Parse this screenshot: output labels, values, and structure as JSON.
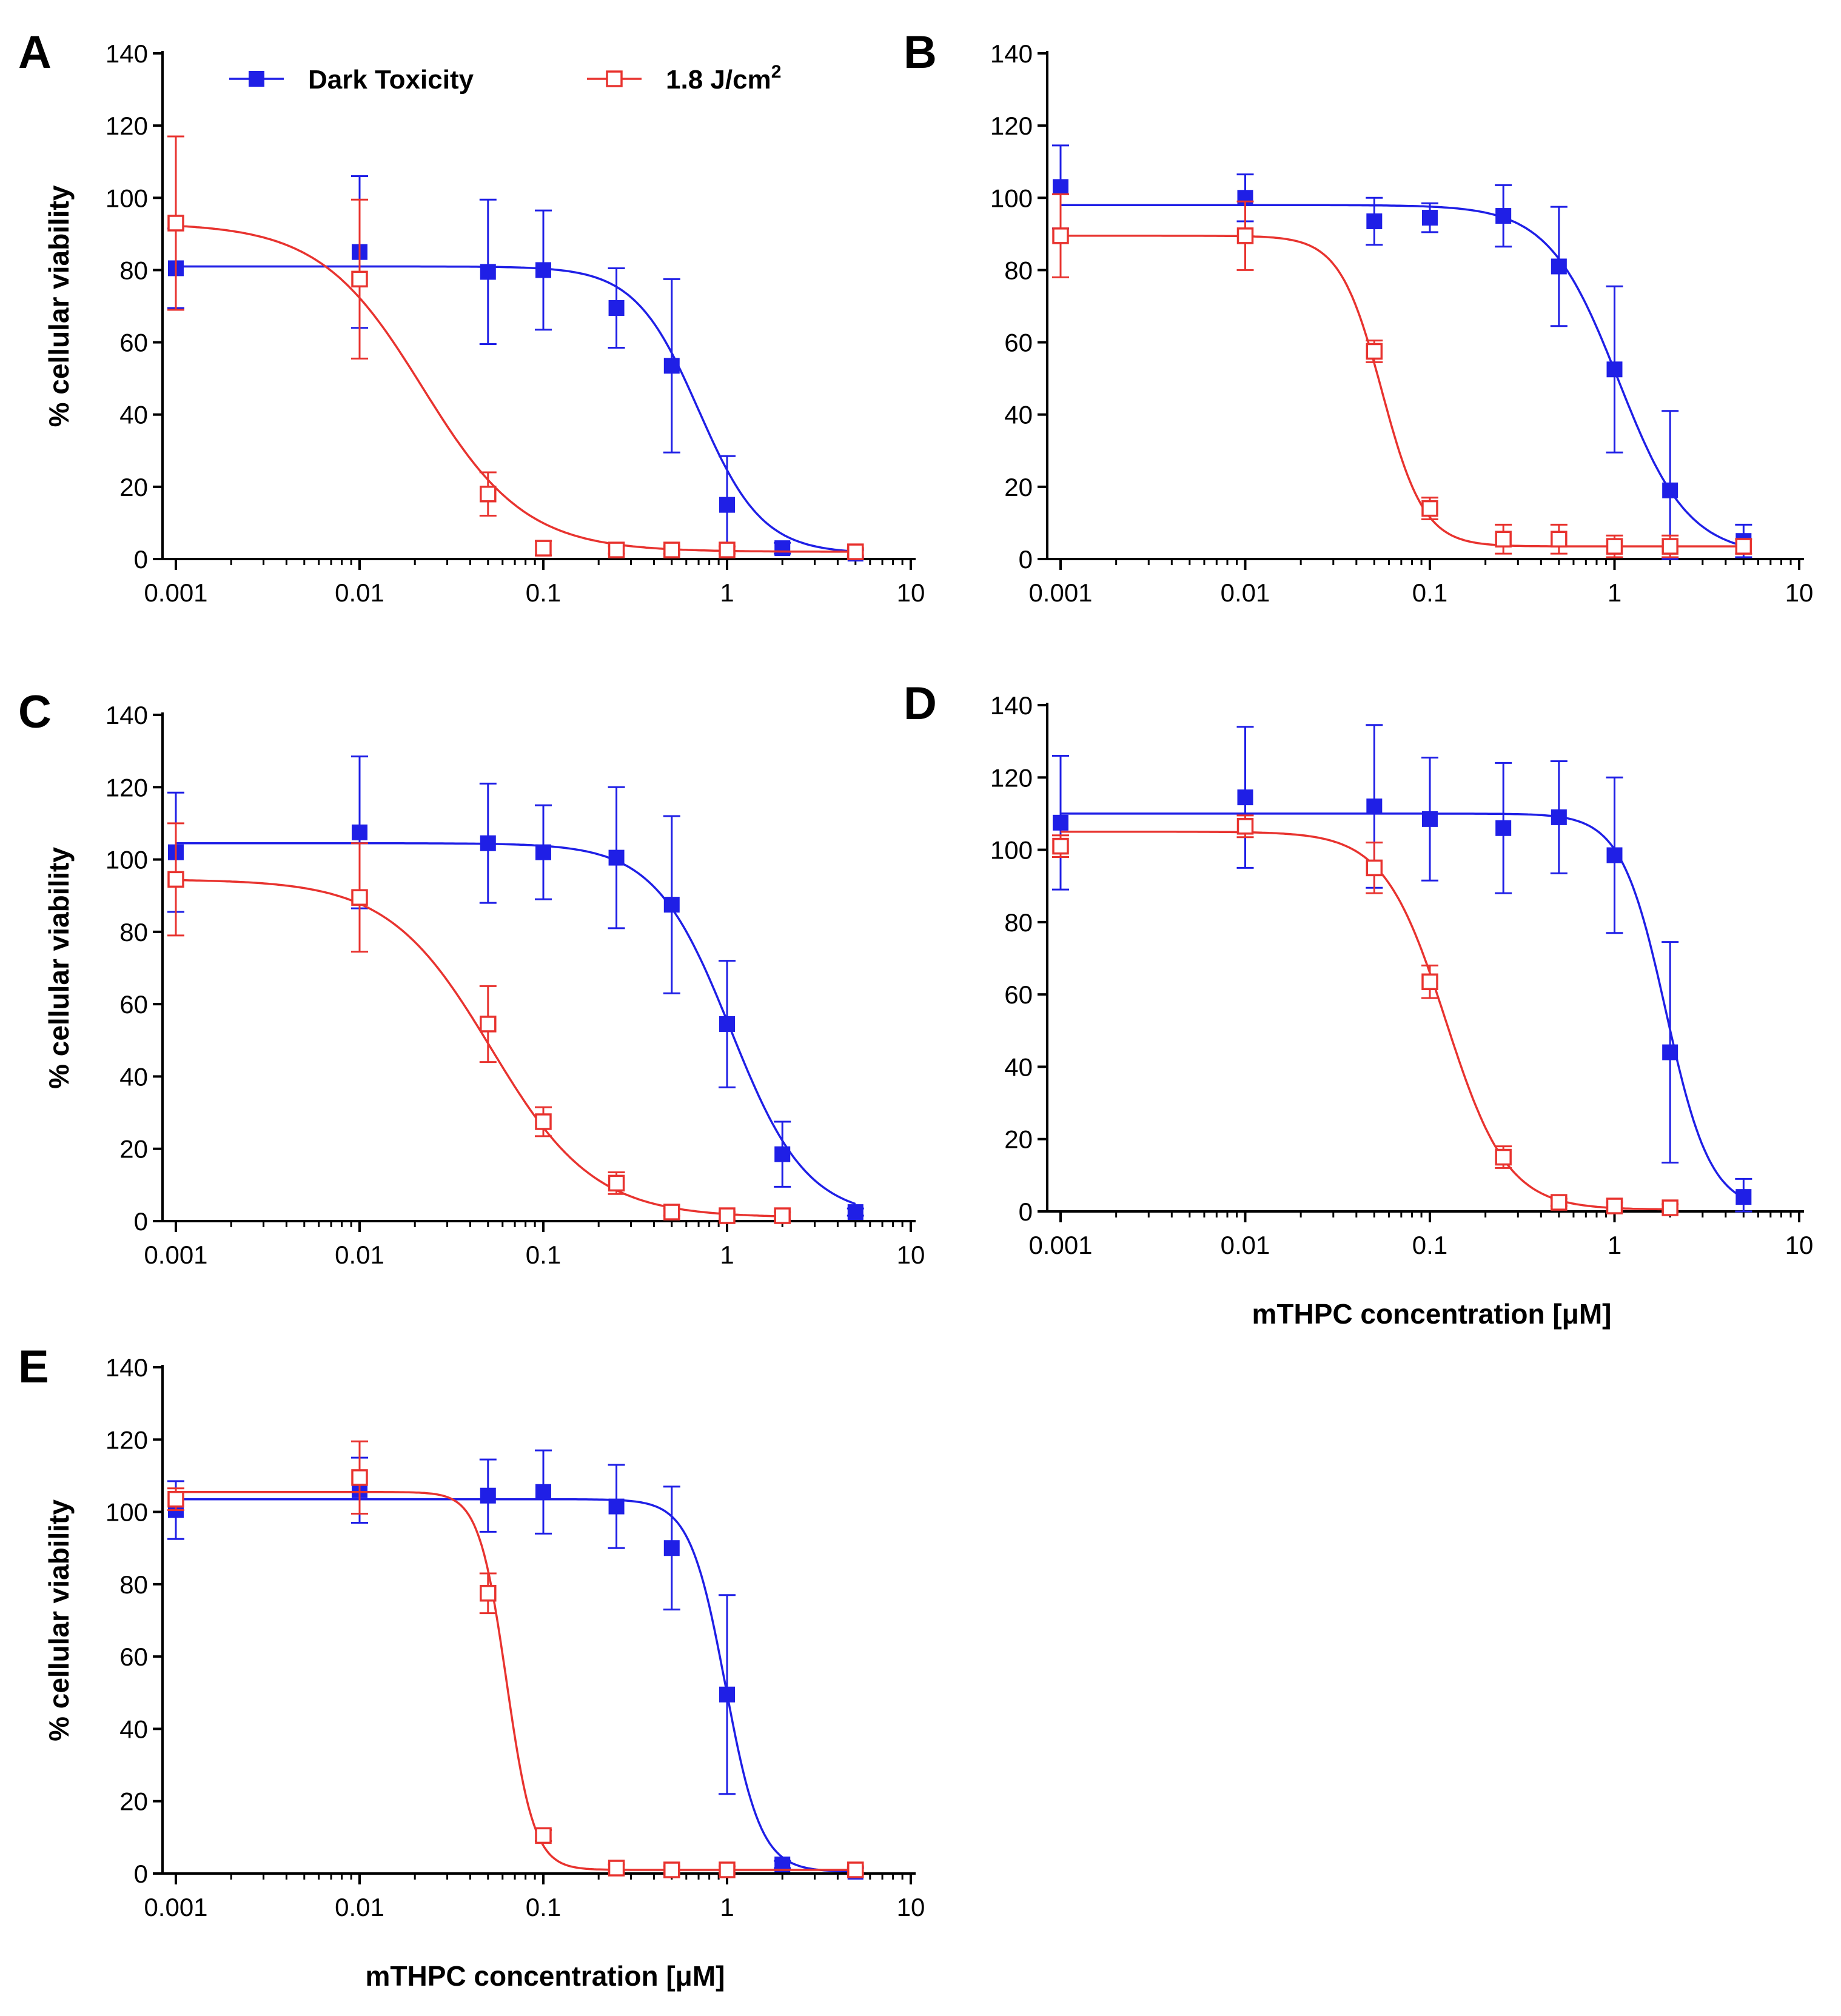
{
  "figure": {
    "colors": {
      "dark": "#1f1fe6",
      "light": "#e8332f",
      "axis": "#000000"
    },
    "legend": {
      "dark_label": "Dark Toxicity",
      "light_label": "1.8 J/cm",
      "light_superscript": "2",
      "placement": "top-center"
    }
  },
  "chart_data": [
    {
      "panel": "A",
      "type": "scatter",
      "x_scale": "log",
      "xlim": [
        0.001,
        10
      ],
      "ylim": [
        0,
        140
      ],
      "x_ticks": [
        "0.001",
        "0.01",
        "0.1",
        "1",
        "10"
      ],
      "y_ticks": [
        "0",
        "20",
        "40",
        "60",
        "80",
        "100",
        "120",
        "140"
      ],
      "ylabel": "% cellular viability",
      "xlabel": "",
      "series": [
        {
          "name": "Dark Toxicity",
          "marker": "filled-square",
          "x": [
            0.001,
            0.01,
            0.05,
            0.1,
            0.25,
            0.5,
            1,
            2,
            5
          ],
          "y": [
            80.5,
            85,
            79.5,
            80,
            69.5,
            53.5,
            15,
            3,
            1.5
          ],
          "err": [
            11,
            21,
            20,
            16.5,
            11,
            24,
            13.5,
            1.5,
            1
          ],
          "fit": {
            "top": 81,
            "bottom": 1.5,
            "ec50": 0.7,
            "hill": 2.5
          }
        },
        {
          "name": "1.8 J/cm2",
          "marker": "open-square",
          "x": [
            0.001,
            0.01,
            0.05,
            0.1,
            0.25,
            0.5,
            1,
            5
          ],
          "y": [
            93,
            77.5,
            18,
            3,
            2.5,
            2.5,
            2.5,
            2
          ],
          "err": [
            24,
            22,
            6,
            2,
            1,
            1,
            1,
            1
          ],
          "fit": {
            "top": 93,
            "bottom": 2,
            "ec50": 0.022,
            "hill": 1.55
          }
        }
      ]
    },
    {
      "panel": "B",
      "type": "scatter",
      "x_scale": "log",
      "xlim": [
        0.001,
        10
      ],
      "ylim": [
        0,
        140
      ],
      "x_ticks": [
        "0.001",
        "0.01",
        "0.1",
        "1",
        "10"
      ],
      "y_ticks": [
        "0",
        "20",
        "40",
        "60",
        "80",
        "100",
        "120",
        "140"
      ],
      "ylabel": "",
      "xlabel": "",
      "series": [
        {
          "name": "Dark Toxicity",
          "marker": "filled-square",
          "x": [
            0.001,
            0.01,
            0.05,
            0.1,
            0.25,
            0.5,
            1,
            2,
            5
          ],
          "y": [
            103,
            100,
            93.5,
            94.5,
            95,
            81,
            52.5,
            19,
            5
          ],
          "err": [
            11.5,
            6.5,
            6.5,
            4,
            8.5,
            16.5,
            23,
            22,
            4.5
          ],
          "fit": {
            "top": 98,
            "bottom": 1,
            "ec50": 1.05,
            "hill": 2.3
          }
        },
        {
          "name": "1.8 J/cm2",
          "marker": "open-square",
          "x": [
            0.001,
            0.01,
            0.05,
            0.1,
            0.25,
            0.5,
            1,
            2,
            5
          ],
          "y": [
            89.5,
            89.5,
            57.5,
            14,
            5.5,
            5.5,
            3.5,
            3.5,
            3.5
          ],
          "err": [
            11.5,
            9.5,
            3,
            3,
            4,
            4,
            3,
            3,
            2
          ],
          "fit": {
            "top": 89.5,
            "bottom": 3.5,
            "ec50": 0.055,
            "hill": 3.8
          }
        }
      ]
    },
    {
      "panel": "C",
      "type": "scatter",
      "x_scale": "log",
      "xlim": [
        0.001,
        10
      ],
      "ylim": [
        0,
        140
      ],
      "x_ticks": [
        "0.001",
        "0.01",
        "0.1",
        "1",
        "10"
      ],
      "y_ticks": [
        "0",
        "20",
        "40",
        "60",
        "80",
        "100",
        "120",
        "140"
      ],
      "ylabel": "% cellular viability",
      "xlabel": "",
      "series": [
        {
          "name": "Dark Toxicity",
          "marker": "filled-square",
          "x": [
            0.001,
            0.01,
            0.05,
            0.1,
            0.25,
            0.5,
            1,
            2,
            5
          ],
          "y": [
            102,
            107.5,
            104.5,
            102,
            100.5,
            87.5,
            54.5,
            18.5,
            2.5
          ],
          "err": [
            16.5,
            21,
            16.5,
            13,
            19.5,
            24.5,
            17.5,
            9,
            1
          ],
          "fit": {
            "top": 104.5,
            "bottom": 1,
            "ec50": 1.05,
            "hill": 2.1
          }
        },
        {
          "name": "1.8 J/cm2",
          "marker": "open-square",
          "x": [
            0.001,
            0.01,
            0.05,
            0.1,
            0.25,
            0.5,
            1,
            2
          ],
          "y": [
            94.5,
            89.5,
            54.5,
            27.5,
            10.5,
            2.5,
            1.5,
            1.5
          ],
          "err": [
            15.5,
            15,
            10.5,
            4,
            3,
            1,
            1,
            1
          ],
          "fit": {
            "top": 94.5,
            "bottom": 1,
            "ec50": 0.052,
            "hill": 1.55
          }
        }
      ]
    },
    {
      "panel": "D",
      "type": "scatter",
      "x_scale": "log",
      "xlim": [
        0.001,
        10
      ],
      "ylim": [
        0,
        140
      ],
      "x_ticks": [
        "0.001",
        "0.01",
        "0.1",
        "1",
        "10"
      ],
      "y_ticks": [
        "0",
        "20",
        "40",
        "60",
        "80",
        "100",
        "120",
        "140"
      ],
      "ylabel": "",
      "xlabel": "mTHPC concentration [μM]",
      "series": [
        {
          "name": "Dark Toxicity",
          "marker": "filled-square",
          "x": [
            0.001,
            0.01,
            0.05,
            0.1,
            0.25,
            0.5,
            1,
            2,
            5
          ],
          "y": [
            107.5,
            114.5,
            112,
            108.5,
            106,
            109,
            98.5,
            44,
            4
          ],
          "err": [
            18.5,
            19.5,
            22.5,
            17,
            18,
            15.5,
            21.5,
            30.5,
            5
          ],
          "fit": {
            "top": 110,
            "bottom": 0.5,
            "ec50": 1.9,
            "hill": 3.6
          }
        },
        {
          "name": "1.8 J/cm2",
          "marker": "open-square",
          "x": [
            0.001,
            0.01,
            0.05,
            0.1,
            0.25,
            0.5,
            1,
            2
          ],
          "y": [
            101,
            106.5,
            95,
            63.5,
            15,
            2.5,
            1.5,
            1
          ],
          "err": [
            3,
            3,
            7,
            4.5,
            3,
            1,
            1,
            1
          ],
          "fit": {
            "top": 105,
            "bottom": 0.5,
            "ec50": 0.122,
            "hill": 2.6
          }
        }
      ]
    },
    {
      "panel": "E",
      "type": "scatter",
      "x_scale": "log",
      "xlim": [
        0.001,
        10
      ],
      "ylim": [
        0,
        140
      ],
      "x_ticks": [
        "0.001",
        "0.01",
        "0.1",
        "1",
        "10"
      ],
      "y_ticks": [
        "0",
        "20",
        "40",
        "60",
        "80",
        "100",
        "120",
        "140"
      ],
      "ylabel": "% cellular viability",
      "xlabel": "mTHPC concentration [μM]",
      "series": [
        {
          "name": "Dark Toxicity",
          "marker": "filled-square",
          "x": [
            0.001,
            0.01,
            0.05,
            0.1,
            0.25,
            0.5,
            1,
            2,
            5
          ],
          "y": [
            100.5,
            106,
            104.5,
            105.5,
            101.5,
            90,
            49.5,
            2.5,
            0.5
          ],
          "err": [
            8,
            9,
            10,
            11.5,
            11.5,
            17,
            27.5,
            1,
            1
          ],
          "fit": {
            "top": 103.5,
            "bottom": 0.5,
            "ec50": 0.98,
            "hill": 4.5
          }
        },
        {
          "name": "1.8 J/cm2",
          "marker": "open-square",
          "x": [
            0.001,
            0.01,
            0.05,
            0.1,
            0.25,
            0.5,
            1,
            5
          ],
          "y": [
            103.5,
            109.5,
            77.5,
            10.5,
            1.5,
            1,
            1,
            1
          ],
          "err": [
            3,
            10,
            5.5,
            1.5,
            1,
            1,
            1,
            1
          ],
          "fit": {
            "top": 105.5,
            "bottom": 1,
            "ec50": 0.063,
            "hill": 5.8
          }
        }
      ]
    }
  ]
}
